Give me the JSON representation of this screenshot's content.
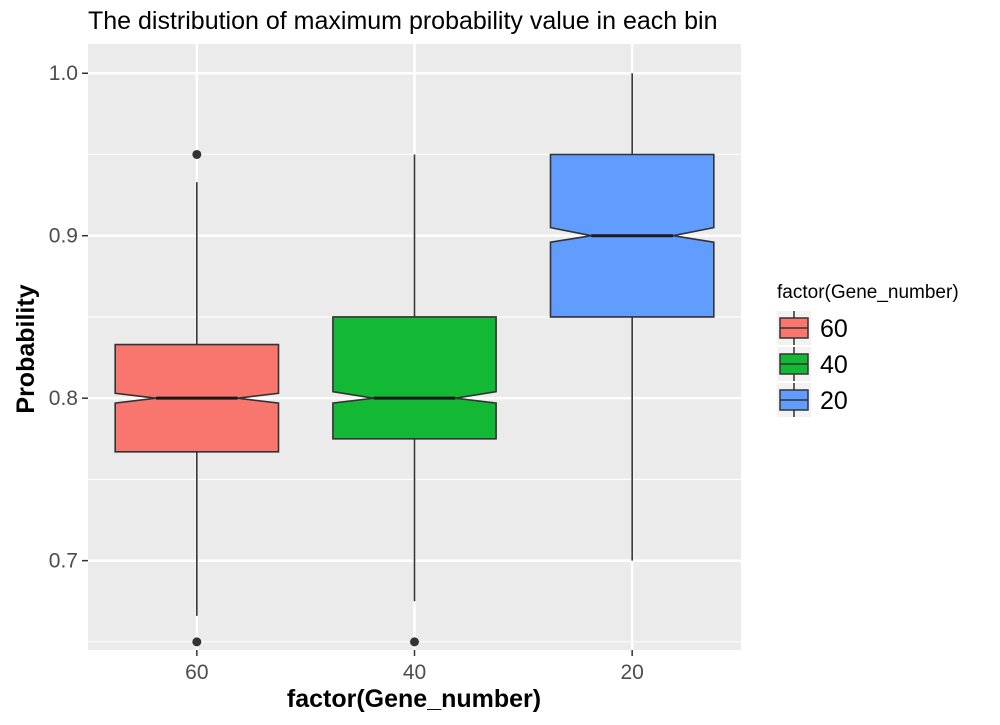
{
  "chart_data": {
    "type": "boxplot",
    "notched": true,
    "title": "The distribution of maximum probability value in each bin",
    "xlabel": "factor(Gene_number)",
    "ylabel": "Probability",
    "ylim": [
      0.645,
      1.018
    ],
    "yticks": [
      0.7,
      0.8,
      0.9,
      1.0
    ],
    "ytick_labels": [
      "0.7",
      "0.8",
      "0.9",
      "1.0"
    ],
    "grid": true,
    "background": "#ebebeb",
    "categories": [
      "60",
      "40",
      "20"
    ],
    "boxes": [
      {
        "category": "60",
        "color": "#f8766d",
        "whisker_low": 0.666,
        "q1": 0.767,
        "median": 0.8,
        "q3": 0.833,
        "whisker_high": 0.933,
        "notch_low": 0.797,
        "notch_high": 0.803,
        "outliers": [
          0.95,
          0.65
        ]
      },
      {
        "category": "40",
        "color": "#13b934",
        "whisker_low": 0.675,
        "q1": 0.775,
        "median": 0.8,
        "q3": 0.85,
        "whisker_high": 0.95,
        "notch_low": 0.797,
        "notch_high": 0.804,
        "outliers": [
          0.65
        ]
      },
      {
        "category": "20",
        "color": "#619cff",
        "whisker_low": 0.7,
        "q1": 0.85,
        "median": 0.9,
        "q3": 0.95,
        "whisker_high": 1.0,
        "notch_low": 0.896,
        "notch_high": 0.905,
        "outliers": []
      }
    ],
    "legend": {
      "title": "factor(Gene_number)",
      "position": "right",
      "entries": [
        {
          "label": "60",
          "color": "#f8766d"
        },
        {
          "label": "40",
          "color": "#13b934"
        },
        {
          "label": "20",
          "color": "#619cff"
        }
      ]
    }
  }
}
